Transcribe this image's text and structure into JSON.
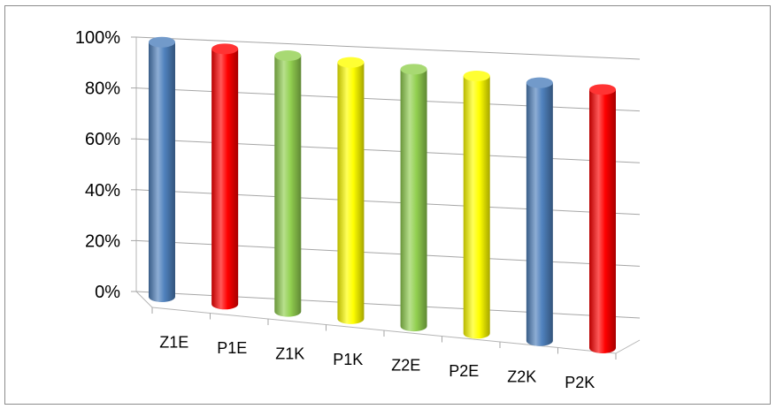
{
  "chart_data": {
    "type": "bar",
    "style": "3d-cylinder",
    "title": "",
    "xlabel": "",
    "ylabel": "",
    "categories": [
      "Z1E",
      "P1E",
      "Z1K",
      "P1K",
      "Z2E",
      "P2E",
      "Z2K",
      "P2K"
    ],
    "values": [
      100,
      100,
      100,
      100,
      100,
      100,
      100,
      100
    ],
    "value_unit": "%",
    "ylim": [
      0,
      100
    ],
    "yticks": [
      "0%",
      "20%",
      "40%",
      "60%",
      "80%",
      "100%"
    ],
    "grid": true,
    "legend": "none",
    "colors": [
      "#4f81bd",
      "#ff0000",
      "#92d050",
      "#ffff00",
      "#92d050",
      "#ffff00",
      "#4f81bd",
      "#ff0000"
    ]
  }
}
